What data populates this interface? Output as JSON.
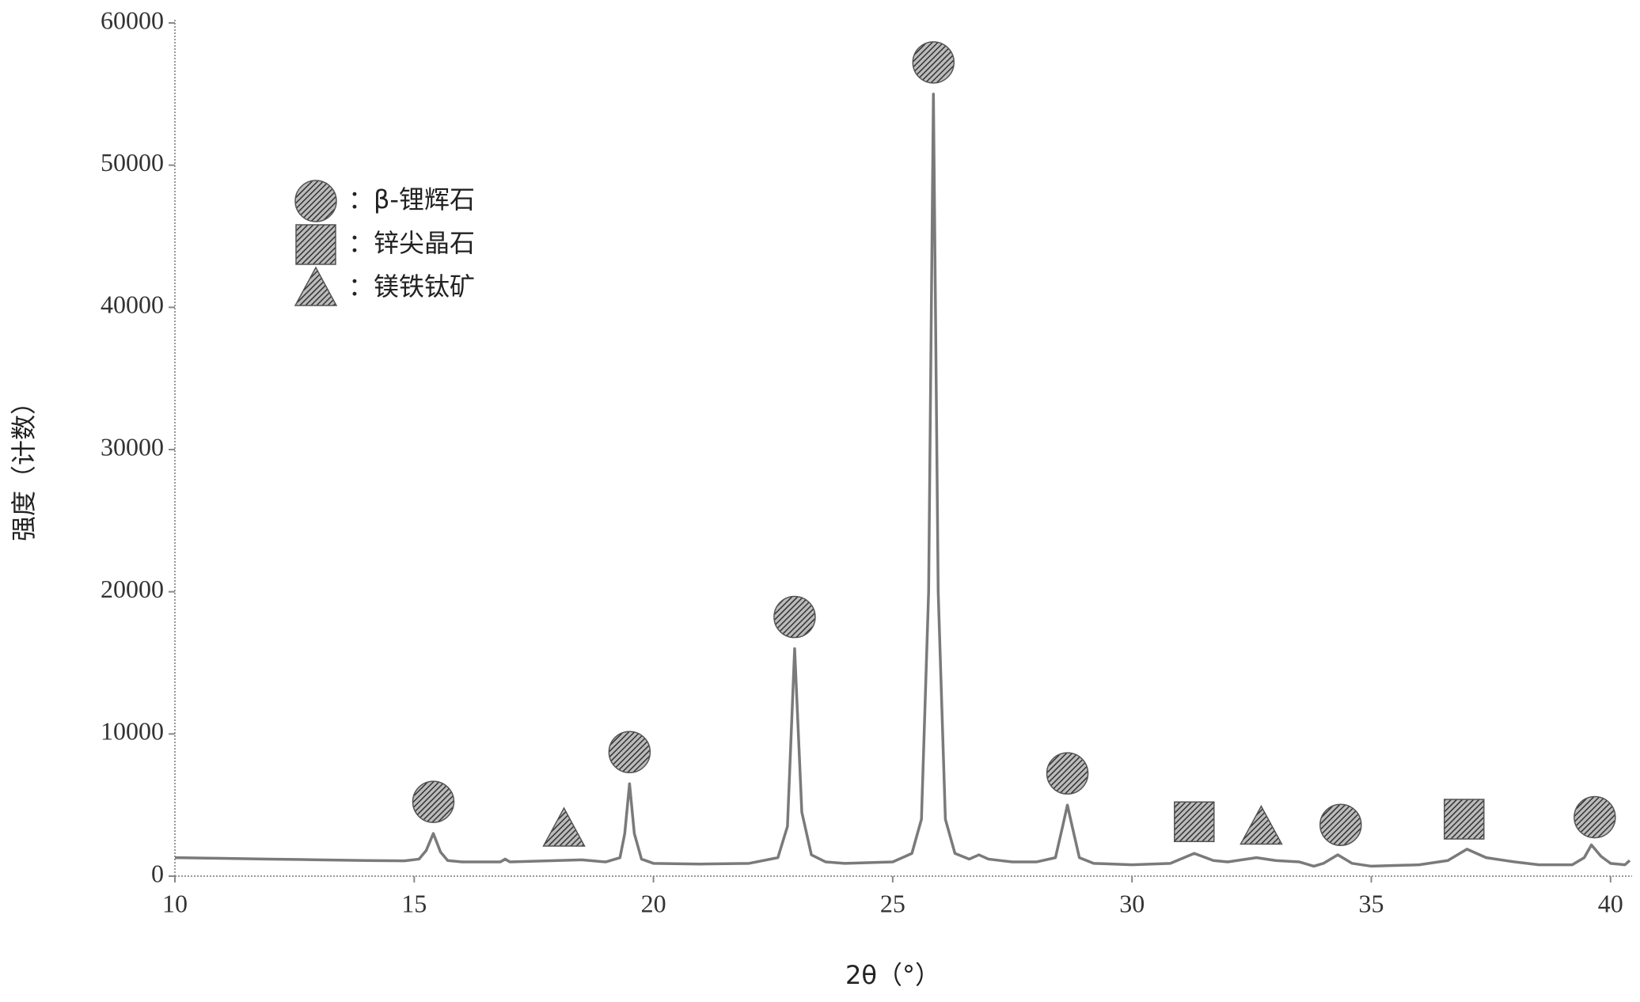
{
  "chart_data": {
    "type": "line",
    "x_label": "2θ（°）",
    "y_label": "强度（计数）",
    "xlim": [
      10,
      40.45
    ],
    "xticks": [
      10,
      15,
      20,
      25,
      30,
      35,
      40
    ],
    "ylim": [
      0,
      60000
    ],
    "yticks": [
      0,
      10000,
      20000,
      30000,
      40000,
      50000,
      60000
    ],
    "x": [
      10,
      11,
      12,
      13,
      14,
      14.8,
      15.1,
      15.25,
      15.4,
      15.55,
      15.7,
      16,
      16.8,
      16.9,
      17.0,
      17.5,
      18,
      18.5,
      19,
      19.3,
      19.4,
      19.5,
      19.6,
      19.75,
      20,
      21,
      22,
      22.6,
      22.8,
      22.95,
      23.1,
      23.3,
      23.6,
      24,
      25,
      25.4,
      25.6,
      25.75,
      25.85,
      25.95,
      26.1,
      26.3,
      26.6,
      26.8,
      27,
      27.5,
      28,
      28.4,
      28.55,
      28.65,
      28.75,
      28.9,
      29.2,
      30,
      30.8,
      31.3,
      31.7,
      32,
      32.6,
      33,
      33.5,
      33.8,
      34,
      34.3,
      34.6,
      35,
      36,
      36.6,
      37,
      37.4,
      38,
      38.5,
      39.2,
      39.45,
      39.6,
      39.8,
      40,
      40.3,
      40.4
    ],
    "series": [
      {
        "color": "#7a7a7a",
        "values": [
          1300,
          1250,
          1200,
          1150,
          1100,
          1080,
          1200,
          1800,
          3000,
          1700,
          1100,
          1000,
          1000,
          1200,
          1000,
          1050,
          1100,
          1150,
          1000,
          1300,
          3000,
          6500,
          3000,
          1200,
          900,
          850,
          900,
          1300,
          3500,
          16000,
          4500,
          1500,
          1000,
          900,
          1000,
          1600,
          4000,
          20000,
          55000,
          20000,
          4000,
          1600,
          1200,
          1500,
          1200,
          1000,
          1000,
          1300,
          3500,
          5000,
          3500,
          1300,
          900,
          800,
          900,
          1600,
          1100,
          1000,
          1300,
          1100,
          1000,
          700,
          900,
          1500,
          900,
          700,
          800,
          1100,
          1900,
          1300,
          1000,
          800,
          800,
          1300,
          2200,
          1400,
          900,
          800,
          1100
        ]
      }
    ],
    "legend": [
      {
        "name": "：β-锂辉石",
        "shape": "circle"
      },
      {
        "name": "：锌尖晶石",
        "shape": "square"
      },
      {
        "name": "：镁铁钛矿",
        "shape": "triangle"
      }
    ],
    "markers": [
      {
        "x": 15.4,
        "phase": 0
      },
      {
        "x": 18.13,
        "phase": 2
      },
      {
        "x": 19.5,
        "phase": 0
      },
      {
        "x": 22.95,
        "phase": 0
      },
      {
        "x": 25.85,
        "phase": 0
      },
      {
        "x": 28.65,
        "phase": 0
      },
      {
        "x": 31.3,
        "phase": 1
      },
      {
        "x": 32.7,
        "phase": 2
      },
      {
        "x": 34.36,
        "phase": 0
      },
      {
        "x": 36.94,
        "phase": 1
      },
      {
        "x": 39.67,
        "phase": 0
      }
    ]
  }
}
